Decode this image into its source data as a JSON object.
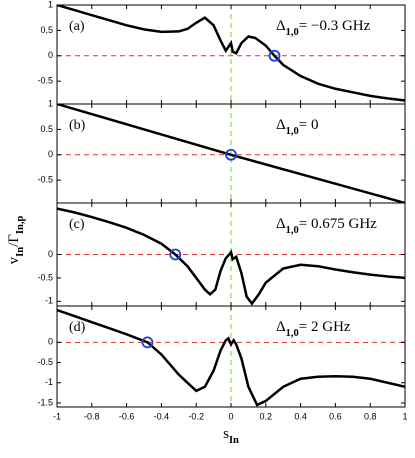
{
  "chart_data": [
    {
      "type": "line",
      "label": "(a)",
      "annotation": [
        {
          "text": "Δ"
        },
        {
          "text": "1,0",
          "sub": true
        },
        {
          "text": "= −0.3 GHz"
        }
      ],
      "x": [
        -1,
        -0.9,
        -0.8,
        -0.7,
        -0.6,
        -0.5,
        -0.4,
        -0.3,
        -0.25,
        -0.2,
        -0.15,
        -0.1,
        -0.06,
        -0.03,
        -0.01,
        0,
        0.01,
        0.03,
        0.06,
        0.1,
        0.14,
        0.2,
        0.25,
        0.3,
        0.4,
        0.5,
        0.6,
        0.7,
        0.8,
        0.9,
        1
      ],
      "series": [
        {
          "color": "#000000",
          "values": [
            1,
            0.9,
            0.8,
            0.7,
            0.6,
            0.52,
            0.47,
            0.48,
            0.53,
            0.65,
            0.75,
            0.6,
            0.3,
            0.1,
            0.2,
            0.25,
            0.08,
            0.05,
            0.25,
            0.38,
            0.35,
            0.2,
            0,
            -0.18,
            -0.4,
            -0.55,
            -0.65,
            -0.72,
            -0.79,
            -0.84,
            -0.88
          ]
        }
      ],
      "markers": {
        "color": "#1f3fd0",
        "x": [
          0.25
        ],
        "y": [
          0
        ]
      },
      "xlim": [
        -1,
        1
      ],
      "xticks": [
        -1,
        -0.8,
        -0.6,
        -0.4,
        -0.2,
        0,
        0.2,
        0.4,
        0.6,
        0.8,
        1
      ],
      "ylim": [
        -0.95,
        1
      ],
      "yticks": [
        1,
        {
          "value": 0.5,
          "label": "0,5"
        },
        0,
        -0.5
      ]
    },
    {
      "type": "line",
      "label": "(b)",
      "annotation": [
        {
          "text": "Δ"
        },
        {
          "text": "1,0",
          "sub": true
        },
        {
          "text": "= 0"
        }
      ],
      "x": [
        -1,
        0,
        1
      ],
      "series": [
        {
          "color": "#000000",
          "values": [
            1,
            0,
            -0.95
          ]
        }
      ],
      "markers": {
        "color": "#1f3fd0",
        "x": [
          0
        ],
        "y": [
          0
        ]
      },
      "xlim": [
        -1,
        1
      ],
      "xticks": [
        -1,
        -0.8,
        -0.6,
        -0.4,
        -0.2,
        0,
        0.2,
        0.4,
        0.6,
        0.8,
        1
      ],
      "ylim": [
        -0.95,
        1
      ],
      "yticks": [
        1,
        0.5,
        0,
        -0.5
      ]
    },
    {
      "type": "line",
      "label": "(c)",
      "annotation": [
        {
          "text": "Δ"
        },
        {
          "text": "1,0",
          "sub": true
        },
        {
          "text": "= 0.675 GHz"
        }
      ],
      "ylabel": [
        {
          "text": "v"
        },
        {
          "text": "In",
          "sub": true
        },
        {
          "text": "/Γ"
        },
        {
          "text": "In,p",
          "sub": true
        }
      ],
      "x": [
        -1,
        -0.9,
        -0.8,
        -0.7,
        -0.6,
        -0.5,
        -0.4,
        -0.32,
        -0.25,
        -0.2,
        -0.15,
        -0.12,
        -0.09,
        -0.06,
        -0.03,
        -0.01,
        0,
        0.01,
        0.03,
        0.06,
        0.09,
        0.12,
        0.16,
        0.2,
        0.3,
        0.4,
        0.5,
        0.6,
        0.7,
        0.8,
        0.9,
        1
      ],
      "series": [
        {
          "color": "#000000",
          "values": [
            0.98,
            0.9,
            0.8,
            0.69,
            0.57,
            0.42,
            0.23,
            0,
            -0.25,
            -0.5,
            -0.75,
            -0.85,
            -0.75,
            -0.35,
            -0.08,
            0,
            0.05,
            -0.1,
            -0.05,
            -0.4,
            -0.9,
            -1.05,
            -0.85,
            -0.6,
            -0.3,
            -0.22,
            -0.25,
            -0.32,
            -0.38,
            -0.43,
            -0.47,
            -0.5
          ]
        }
      ],
      "markers": {
        "color": "#1f3fd0",
        "x": [
          -0.32
        ],
        "y": [
          0
        ]
      },
      "xlim": [
        -1,
        1
      ],
      "xticks": [
        -1,
        -0.8,
        -0.6,
        -0.4,
        -0.2,
        0,
        0.2,
        0.4,
        0.6,
        0.8,
        1
      ],
      "ylim": [
        -1.1,
        1.1
      ],
      "yticks": [
        0,
        -0.5,
        -1
      ]
    },
    {
      "type": "line",
      "label": "(d)",
      "annotation": [
        {
          "text": "Δ"
        },
        {
          "text": "1,0",
          "sub": true
        },
        {
          "text": "= 2 GHz"
        }
      ],
      "xlabel": [
        {
          "text": "s"
        },
        {
          "text": "In",
          "sub": true
        }
      ],
      "x": [
        -1,
        -0.9,
        -0.8,
        -0.7,
        -0.6,
        -0.48,
        -0.4,
        -0.3,
        -0.2,
        -0.15,
        -0.1,
        -0.06,
        -0.03,
        -0.015,
        0,
        0.015,
        0.03,
        0.06,
        0.1,
        0.15,
        0.2,
        0.3,
        0.4,
        0.5,
        0.6,
        0.7,
        0.8,
        0.9,
        1
      ],
      "series": [
        {
          "color": "#000000",
          "values": [
            0.8,
            0.65,
            0.5,
            0.35,
            0.2,
            0,
            -0.3,
            -0.8,
            -1.2,
            -1.1,
            -0.7,
            -0.2,
            0.05,
            0.1,
            -0.05,
            0.05,
            -0.05,
            -0.4,
            -1.1,
            -1.55,
            -1.45,
            -1.1,
            -0.9,
            -0.85,
            -0.84,
            -0.85,
            -0.9,
            -1,
            -1.1
          ]
        }
      ],
      "markers": {
        "color": "#1f3fd0",
        "x": [
          -0.48
        ],
        "y": [
          0
        ]
      },
      "xlim": [
        -1,
        1
      ],
      "xticks": [
        -1,
        -0.8,
        -0.6,
        -0.4,
        -0.2,
        0,
        0.2,
        0.4,
        0.6,
        0.8,
        1
      ],
      "ylim": [
        -1.6,
        0.9
      ],
      "yticks": [
        0,
        -0.5,
        -1,
        -1.5
      ]
    }
  ]
}
